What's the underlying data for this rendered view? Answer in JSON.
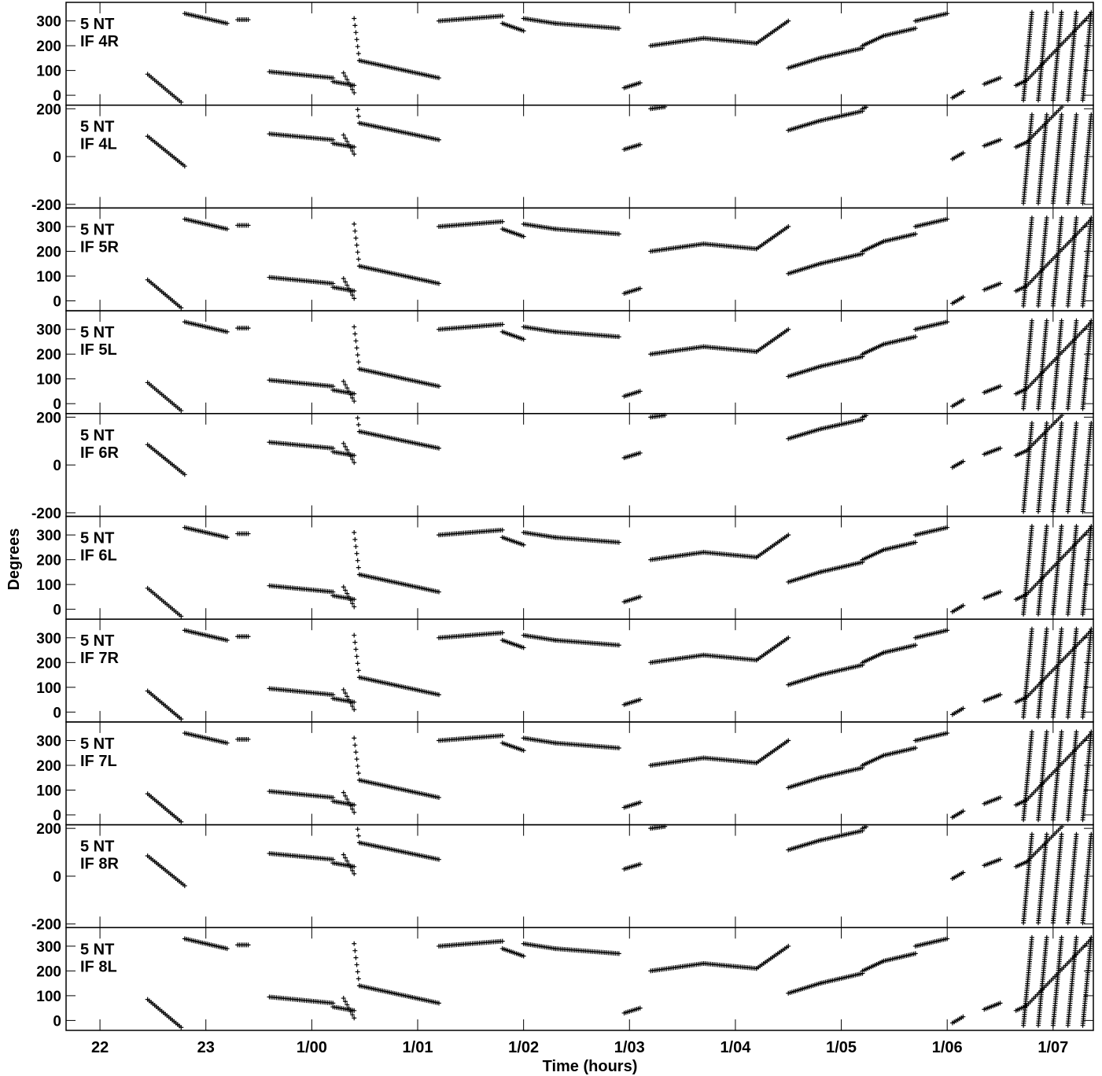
{
  "chart_data": {
    "type": "scatter",
    "marker": "+",
    "xlabel": "Time (hours)",
    "ylabel": "Degrees",
    "x_unit": "hours since 22:00 (day 0)",
    "xlim": [
      21.68,
      31.38
    ],
    "x_ticks": [
      {
        "value": 22,
        "label": "22"
      },
      {
        "value": 23,
        "label": "23"
      },
      {
        "value": 24,
        "label": "1/00"
      },
      {
        "value": 25,
        "label": "1/01"
      },
      {
        "value": 26,
        "label": "1/02"
      },
      {
        "value": 27,
        "label": "1/03"
      },
      {
        "value": 28,
        "label": "1/04"
      },
      {
        "value": 29,
        "label": "1/05"
      },
      {
        "value": 30,
        "label": "1/06"
      },
      {
        "value": 31,
        "label": "1/07"
      }
    ],
    "panels": [
      {
        "label": [
          "5 NT",
          "IF 4R"
        ],
        "ylim": [
          -40,
          375
        ],
        "yticks": [
          0,
          100,
          200,
          300
        ],
        "segments": [
          {
            "x": [
              22.45,
              22.8
            ],
            "y": [
              85,
              -40
            ]
          },
          {
            "x": [
              22.8,
              23.2
            ],
            "y": [
              330,
              290
            ]
          },
          {
            "x": [
              23.3,
              23.4
            ],
            "y": [
              305,
              305
            ]
          },
          {
            "x": [
              23.6,
              24.2
            ],
            "y": [
              95,
              70
            ]
          },
          {
            "x": [
              24.2,
              24.4
            ],
            "y": [
              55,
              40
            ]
          },
          {
            "x": [
              24.3,
              24.4
            ],
            "y": [
              90,
              10
            ]
          },
          {
            "x": [
              24.4,
              24.45
            ],
            "y": [
              310,
              140
            ]
          },
          {
            "x": [
              24.45,
              25.2
            ],
            "y": [
              140,
              70
            ]
          },
          {
            "x": [
              25.2,
              25.8
            ],
            "y": [
              300,
              320
            ]
          },
          {
            "x": [
              25.8,
              26.0
            ],
            "y": [
              290,
              260
            ]
          },
          {
            "x": [
              26.0,
              26.3
            ],
            "y": [
              310,
              290
            ]
          },
          {
            "x": [
              26.3,
              26.9
            ],
            "y": [
              290,
              270
            ]
          },
          {
            "x": [
              26.95,
              27.1
            ],
            "y": [
              30,
              50
            ]
          },
          {
            "x": [
              27.2,
              27.7
            ],
            "y": [
              200,
              230
            ]
          },
          {
            "x": [
              27.7,
              28.2
            ],
            "y": [
              230,
              210
            ]
          },
          {
            "x": [
              28.2,
              28.5
            ],
            "y": [
              210,
              300
            ]
          },
          {
            "x": [
              28.5,
              28.8
            ],
            "y": [
              110,
              150
            ]
          },
          {
            "x": [
              28.8,
              29.2
            ],
            "y": [
              150,
              190
            ]
          },
          {
            "x": [
              29.2,
              29.4
            ],
            "y": [
              200,
              240
            ]
          },
          {
            "x": [
              29.4,
              29.7
            ],
            "y": [
              240,
              270
            ]
          },
          {
            "x": [
              29.7,
              30.0
            ],
            "y": [
              300,
              330
            ]
          },
          {
            "x": [
              30.05,
              30.15
            ],
            "y": [
              -10,
              15
            ]
          },
          {
            "x": [
              30.35,
              30.5
            ],
            "y": [
              45,
              70
            ]
          },
          {
            "x": [
              30.65,
              30.75
            ],
            "y": [
              40,
              60
            ]
          },
          {
            "x": [
              30.75,
              31.35
            ],
            "y": [
              60,
              325
            ]
          }
        ],
        "wraps": [
          {
            "x": [
              31.35,
              32.5
            ]
          }
        ]
      }
    ]
  },
  "panel_labels": {
    "line1": "5 NT",
    "line2s": [
      "IF 4R",
      "IF 4L",
      "IF 5R",
      "IF 5L",
      "IF 6R",
      "IF 6L",
      "IF 7R",
      "IF 7L",
      "IF 8R",
      "IF 8L"
    ]
  },
  "axis_labels": {
    "xlabel": "Time (hours)",
    "ylabel": "Degrees"
  },
  "tick_labels": {
    "deg_0_300": [
      "0",
      "100",
      "200",
      "300"
    ],
    "deg_pm200": [
      "-200",
      "0",
      "200"
    ],
    "time": [
      "22",
      "23",
      "1/00",
      "1/01",
      "1/02",
      "1/03",
      "1/04",
      "1/05",
      "1/06",
      "1/07"
    ]
  },
  "colors": {
    "marker": "#000000",
    "frame": "#000000",
    "background": "#ffffff"
  }
}
